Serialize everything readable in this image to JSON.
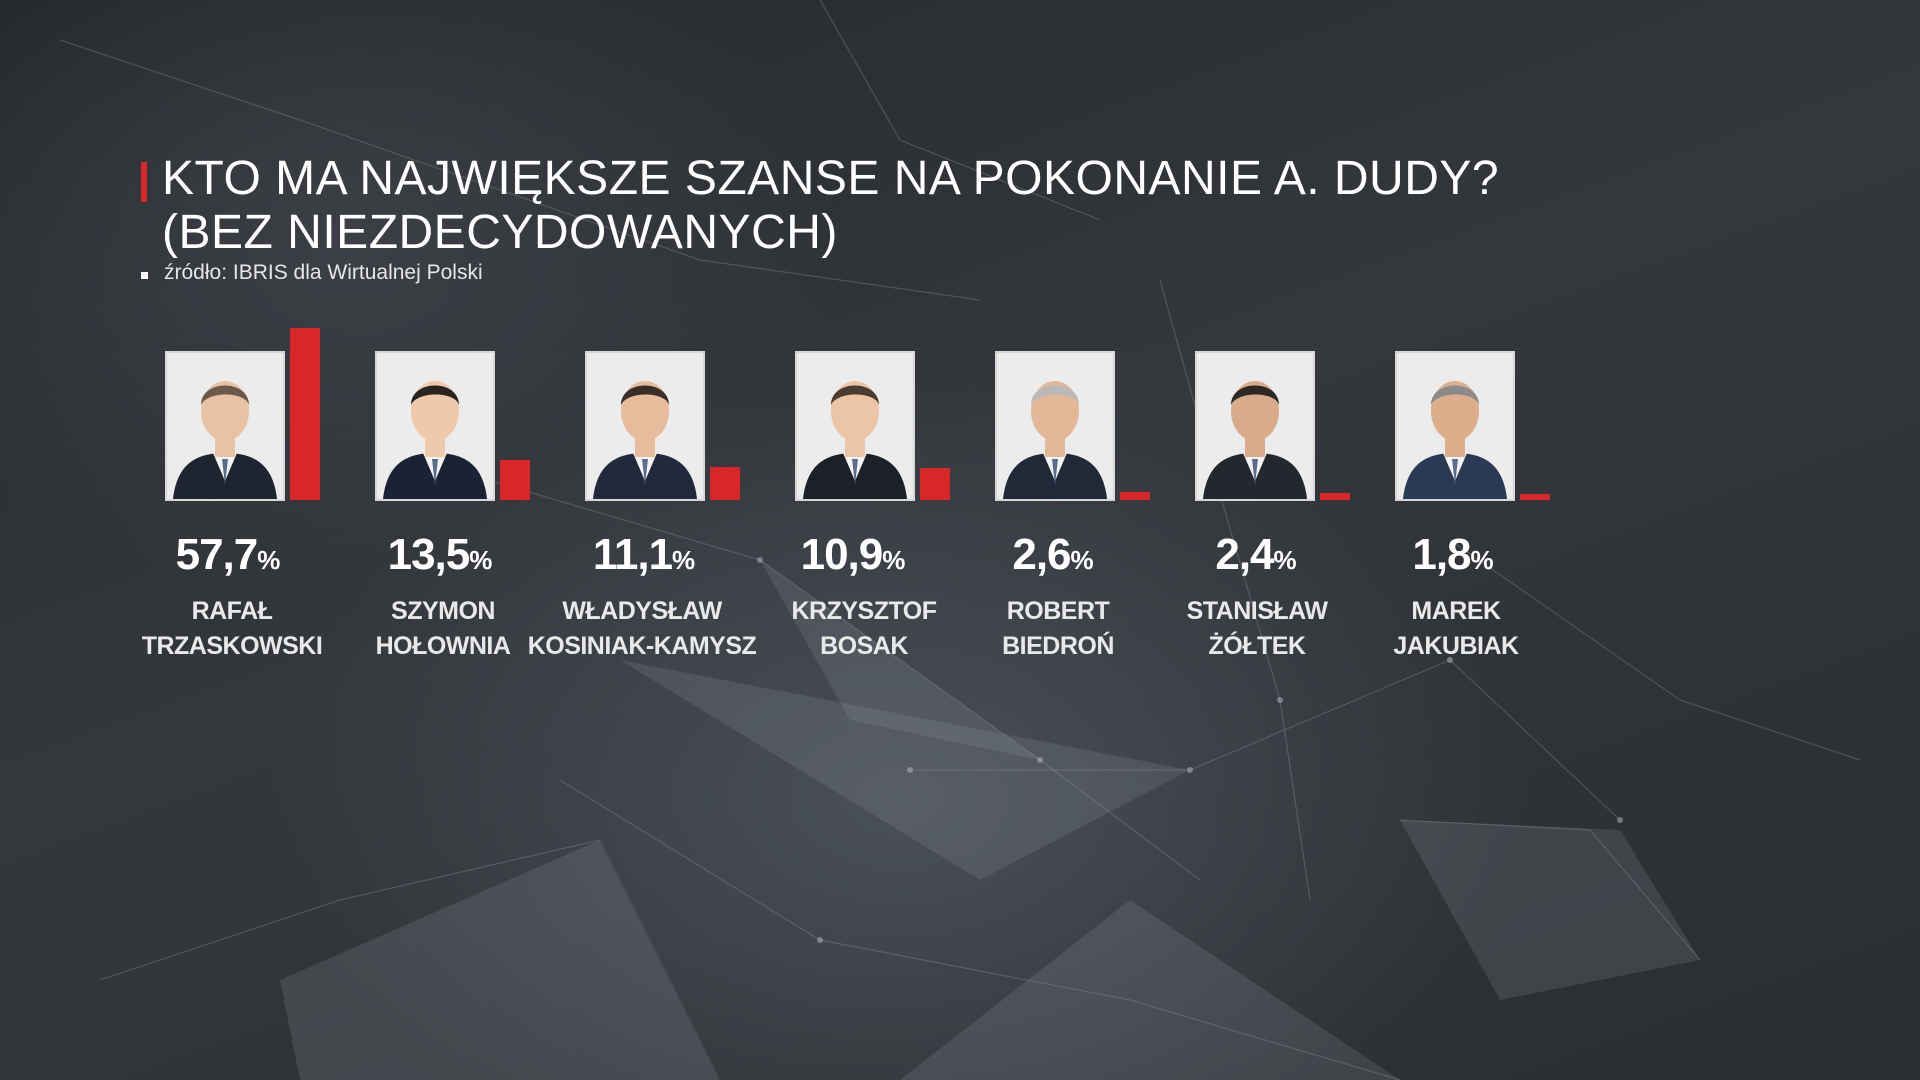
{
  "header": {
    "title": "KTO MA NAJWIĘKSZE SZANSE NA POKONANIE A. DUDY?",
    "subtitle": "(BEZ NIEZDECYDOWANYCH)",
    "source": "źródło: IBRIS dla Wirtualnej Polski"
  },
  "colors": {
    "accent": "#d8262a",
    "text": "#ffffff"
  },
  "chart_data": {
    "type": "bar",
    "title": "KTO MA NAJWIĘKSZE SZANSE NA POKONANIE A. DUDY?",
    "subtitle": "(BEZ NIEZDECYDOWANYCH)",
    "unit": "%",
    "ylim": [
      0,
      57.7
    ],
    "categories": [
      "RAFAŁ TRZASKOWSKI",
      "SZYMON HOŁOWNIA",
      "WŁADYSŁAW KOSINIAK-KAMYSZ",
      "KRZYSZTOF BOSAK",
      "ROBERT BIEDROŃ",
      "STANISŁAW ŻÓŁTEK",
      "MAREK JAKUBIAK"
    ],
    "values": [
      57.7,
      13.5,
      11.1,
      10.9,
      2.6,
      2.4,
      1.8
    ],
    "value_labels": [
      "57,7",
      "13,5",
      "11,1",
      "10,9",
      "2,6",
      "2,4",
      "1,8"
    ],
    "name_lines": [
      [
        "RAFAŁ",
        "TRZASKOWSKI"
      ],
      [
        "SZYMON",
        "HOŁOWNIA"
      ],
      [
        "WŁADYSŁAW",
        "KOSINIAK-KAMYSZ"
      ],
      [
        "KRZYSZTOF",
        "BOSAK"
      ],
      [
        "ROBERT",
        "BIEDROŃ"
      ],
      [
        "STANISŁAW",
        "ŻÓŁTEK"
      ],
      [
        "MAREK",
        "JAKUBIAK"
      ]
    ],
    "percent_sign": "%",
    "grid": false,
    "legend": "none"
  }
}
